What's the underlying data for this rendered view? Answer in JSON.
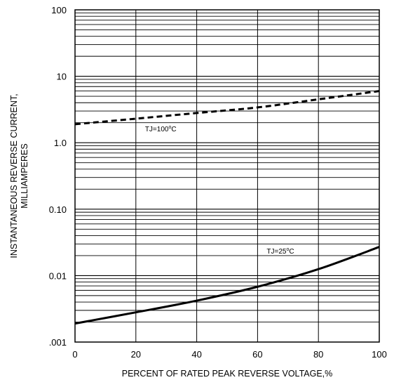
{
  "chart_data": {
    "type": "line",
    "title": "",
    "xlabel": "PERCENT OF RATED PEAK REVERSE VOLTAGE,%",
    "ylabel_lines": [
      "INSTANTANEOUS REVERSE CURRENT,",
      "MILLIAMPERES"
    ],
    "x_scale": "linear",
    "y_scale": "log",
    "xlim": [
      0,
      100
    ],
    "ylim": [
      0.001,
      100
    ],
    "x_ticks": [
      0,
      20,
      40,
      60,
      80,
      100
    ],
    "x_tick_labels": [
      "0",
      "20",
      "40",
      "60",
      "80",
      "100"
    ],
    "y_ticks": [
      0.001,
      0.01,
      0.1,
      1,
      10,
      100
    ],
    "y_tick_labels": [
      ".001",
      "0.01",
      "0.10",
      "1.0",
      "10",
      "100"
    ],
    "grid": true,
    "series": [
      {
        "label_text": "TJ=100",
        "label_sup": "o",
        "label_tail": "C",
        "style": "dashed",
        "x": [
          0,
          20,
          40,
          60,
          80,
          100
        ],
        "y": [
          1.9,
          2.3,
          2.8,
          3.4,
          4.5,
          6.0
        ]
      },
      {
        "label_text": "TJ=25",
        "label_sup": "o",
        "label_tail": "C",
        "style": "solid",
        "x": [
          0,
          20,
          40,
          60,
          80,
          100
        ],
        "y": [
          0.0019,
          0.0028,
          0.0042,
          0.0068,
          0.0125,
          0.027
        ]
      }
    ],
    "colors": {
      "line": "#000000",
      "grid": "#000000",
      "background": "#ffffff"
    }
  }
}
